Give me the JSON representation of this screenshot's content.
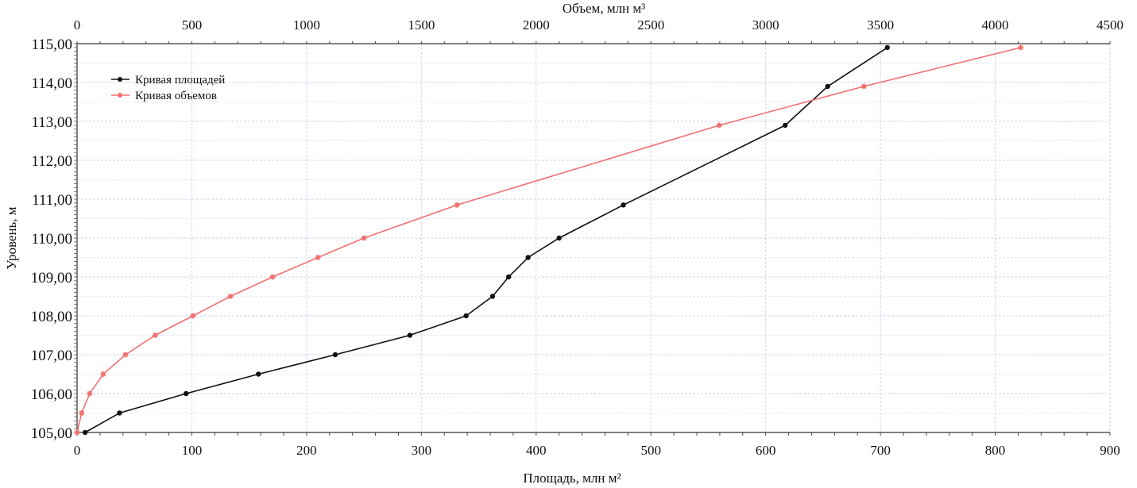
{
  "chart_data": {
    "type": "line",
    "title": "",
    "ylabel": "Уровень, м",
    "xlabel_bottom": "Площадь, млн м²",
    "xlabel_top": "Объем, млн м³",
    "ylim": [
      105,
      115
    ],
    "xlim_bottom": [
      0,
      900
    ],
    "xlim_top": [
      0,
      4500
    ],
    "grid": true,
    "legend_position": "top-left",
    "y_ticks": [
      "105,00",
      "106,00",
      "107,00",
      "108,00",
      "109,00",
      "110,00",
      "111,00",
      "112,00",
      "113,00",
      "114,00",
      "115,00"
    ],
    "x_ticks_bottom": [
      "0",
      "100",
      "200",
      "300",
      "400",
      "500",
      "600",
      "700",
      "800",
      "900"
    ],
    "x_ticks_top": [
      "0",
      "500",
      "1000",
      "1500",
      "2000",
      "2500",
      "3000",
      "3500",
      "4000",
      "4500"
    ],
    "series": [
      {
        "name": "Кривая площадей",
        "axis": "bottom",
        "color": "#111111",
        "points": [
          [
            7,
            105.0
          ],
          [
            37,
            105.5
          ],
          [
            95,
            106.0
          ],
          [
            158,
            106.5
          ],
          [
            225,
            107.0
          ],
          [
            290,
            107.5
          ],
          [
            339,
            108.0
          ],
          [
            362,
            108.5
          ],
          [
            376,
            109.0
          ],
          [
            393,
            109.5
          ],
          [
            420,
            110.0
          ],
          [
            476,
            110.85
          ],
          [
            617,
            112.9
          ],
          [
            654,
            113.9
          ],
          [
            706,
            114.9
          ]
        ]
      },
      {
        "name": "Кривая объемов",
        "axis": "top",
        "color": "#f07070",
        "points": [
          [
            0,
            105.0
          ],
          [
            20,
            105.5
          ],
          [
            55,
            106.0
          ],
          [
            114,
            106.5
          ],
          [
            211,
            107.0
          ],
          [
            340,
            107.5
          ],
          [
            505,
            108.0
          ],
          [
            668,
            108.5
          ],
          [
            852,
            109.0
          ],
          [
            1049,
            109.5
          ],
          [
            1250,
            110.0
          ],
          [
            1655,
            110.85
          ],
          [
            2798,
            112.9
          ],
          [
            3428,
            113.9
          ],
          [
            4111,
            114.9
          ]
        ]
      }
    ]
  }
}
